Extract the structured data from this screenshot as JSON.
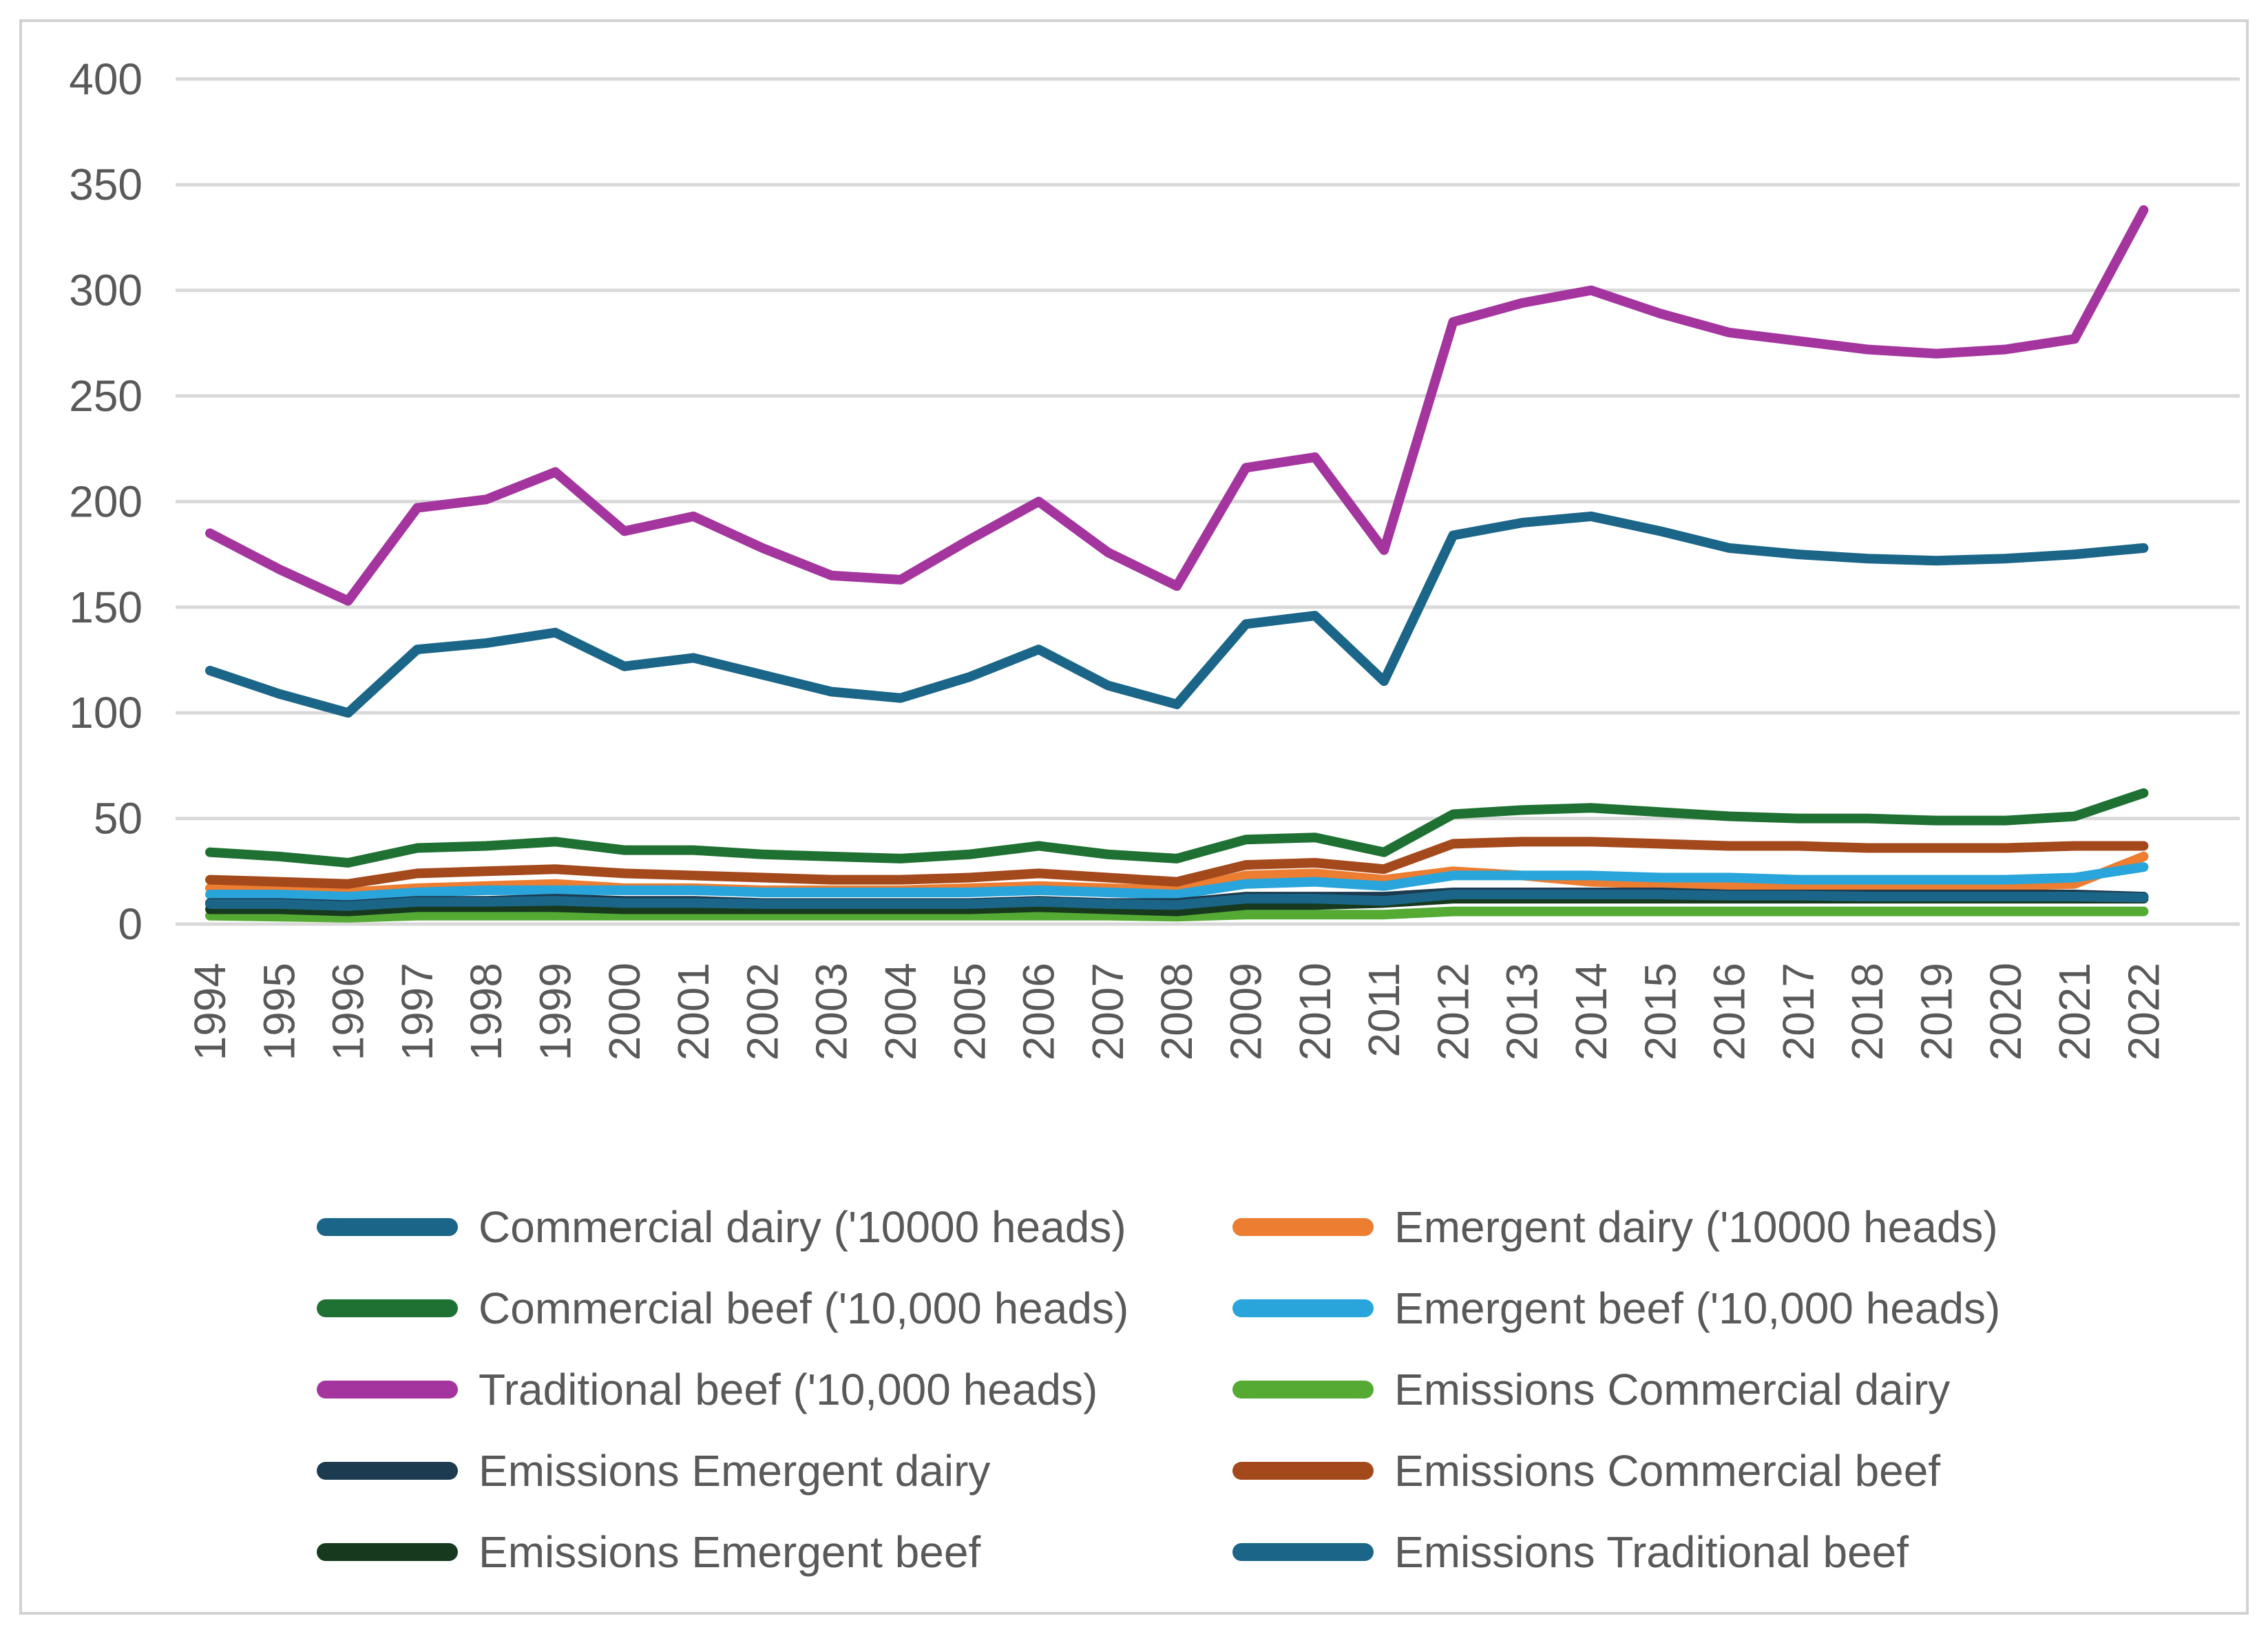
{
  "chart_data": {
    "type": "line",
    "title": "",
    "xlabel": "",
    "ylabel": "",
    "x": [
      1994,
      1995,
      1996,
      1997,
      1998,
      1999,
      2000,
      2001,
      2002,
      2003,
      2004,
      2005,
      2006,
      2007,
      2008,
      2009,
      2010,
      2011,
      2012,
      2013,
      2014,
      2015,
      2016,
      2017,
      2018,
      2019,
      2020,
      2021,
      2022
    ],
    "ylim": [
      0,
      400
    ],
    "yticks": [
      0,
      50,
      100,
      150,
      200,
      250,
      300,
      350,
      400
    ],
    "grid": true,
    "legend_position": "bottom",
    "gridline_color": "#d9d9d9",
    "border_color": "#d2d2d2",
    "tick_color": "#595959",
    "series": [
      {
        "name": "Commercial dairy ('10000 heads)",
        "color": "#1b6688",
        "values": [
          120,
          109,
          100,
          130,
          133,
          138,
          122,
          126,
          118,
          110,
          107,
          117,
          130,
          113,
          104,
          142,
          146,
          115,
          184,
          190,
          193,
          186,
          178,
          175,
          173,
          172,
          173,
          175,
          178
        ]
      },
      {
        "name": "Emergent dairy ('10000 heads)",
        "color": "#ec7d31",
        "values": [
          17,
          16,
          15,
          17,
          18,
          19,
          17,
          17,
          16,
          16,
          16,
          17,
          18,
          17,
          16,
          23,
          24,
          21,
          25,
          23,
          20,
          19,
          18,
          18,
          18,
          18,
          18,
          19,
          32
        ]
      },
      {
        "name": "Commercial beef ('10,000 heads)",
        "color": "#1f7133",
        "values": [
          34,
          32,
          29,
          36,
          37,
          39,
          35,
          35,
          33,
          32,
          31,
          33,
          37,
          33,
          31,
          40,
          41,
          34,
          52,
          54,
          55,
          53,
          51,
          50,
          50,
          49,
          49,
          51,
          62
        ]
      },
      {
        "name": "Emergent beef ('10,000 heads)",
        "color": "#29a5db",
        "values": [
          14,
          14,
          13,
          15,
          16,
          16,
          16,
          16,
          15,
          15,
          15,
          15,
          16,
          15,
          14,
          19,
          20,
          18,
          23,
          23,
          23,
          22,
          22,
          21,
          21,
          21,
          21,
          22,
          27
        ]
      },
      {
        "name": "Traditional beef ('10,000 heads)",
        "color": "#a4359e",
        "values": [
          185,
          168,
          153,
          197,
          201,
          214,
          186,
          193,
          178,
          165,
          163,
          182,
          200,
          176,
          160,
          216,
          221,
          177,
          285,
          294,
          300,
          289,
          280,
          276,
          272,
          270,
          272,
          277,
          338
        ]
      },
      {
        "name": "Emissions Commercial dairy",
        "color": "#54aa33",
        "values": [
          4,
          3.5,
          3,
          4,
          4,
          4,
          4,
          4,
          4,
          4,
          4,
          4,
          4,
          4,
          3.5,
          4.5,
          4.5,
          4.5,
          6,
          6,
          6,
          6,
          6,
          6,
          6,
          6,
          6,
          6,
          6
        ]
      },
      {
        "name": "Emissions Emergent dairy",
        "color": "#1c3b50",
        "values": [
          10,
          10,
          9,
          11,
          11,
          12,
          11,
          11,
          10,
          10,
          10,
          10,
          11,
          10,
          10,
          13,
          13,
          13,
          15,
          15,
          15,
          15,
          14,
          14,
          14,
          14,
          14,
          14,
          13
        ]
      },
      {
        "name": "Emissions Commercial beef",
        "color": "#a4491c",
        "values": [
          21,
          20,
          19,
          24,
          25,
          26,
          24,
          23,
          22,
          21,
          21,
          22,
          24,
          22,
          20,
          28,
          29,
          26,
          38,
          39,
          39,
          38,
          37,
          37,
          36,
          36,
          36,
          37,
          37
        ]
      },
      {
        "name": "Emissions  Emergent beef",
        "color": "#173a1f",
        "values": [
          7,
          7,
          6,
          8,
          8,
          8,
          7,
          7,
          7,
          7,
          7,
          7,
          8,
          7,
          6,
          9,
          9,
          10,
          12,
          12,
          12,
          12,
          12,
          12,
          12,
          12,
          12,
          12,
          12
        ]
      },
      {
        "name": "Emissions Traditional beef",
        "color": "#1b6688",
        "values": [
          9.5,
          9.5,
          8.5,
          10.5,
          10.5,
          11,
          10,
          10,
          9.5,
          9.5,
          9.5,
          9.5,
          10.5,
          9.5,
          9,
          12,
          12,
          11,
          14,
          14,
          14,
          14,
          13.5,
          13.5,
          13,
          13,
          13,
          13,
          12.5
        ]
      }
    ],
    "legend_grid": [
      [
        "Commercial dairy ('10000 heads)",
        "Emergent dairy ('10000 heads)"
      ],
      [
        "Commercial beef ('10,000 heads)",
        "Emergent beef ('10,000 heads)"
      ],
      [
        "Traditional beef ('10,000 heads)",
        "Emissions Commercial dairy"
      ],
      [
        "Emissions Emergent dairy",
        "Emissions Commercial beef"
      ],
      [
        "Emissions  Emergent beef",
        "Emissions Traditional beef"
      ]
    ]
  }
}
